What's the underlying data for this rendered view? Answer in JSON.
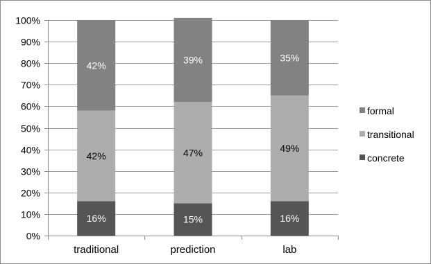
{
  "chart_data": {
    "type": "bar",
    "stacked": true,
    "categories": [
      "traditional",
      "prediction",
      "lab"
    ],
    "series": [
      {
        "name": "concrete",
        "values": [
          16,
          15,
          16
        ],
        "labels": [
          "16%",
          "15%",
          "16%"
        ],
        "color": "#555555",
        "label_color": "#ffffff"
      },
      {
        "name": "transitional",
        "values": [
          42,
          47,
          49
        ],
        "labels": [
          "42%",
          "47%",
          "49%"
        ],
        "color": "#adadad",
        "label_color": "#000000"
      },
      {
        "name": "formal",
        "values": [
          42,
          39,
          35
        ],
        "labels": [
          "42%",
          "39%",
          "35%"
        ],
        "color": "#828282",
        "label_color": "#ffffff"
      }
    ],
    "ylim": [
      0,
      100
    ],
    "yticks": [
      "0%",
      "10%",
      "20%",
      "30%",
      "40%",
      "50%",
      "60%",
      "70%",
      "80%",
      "90%",
      "100%"
    ],
    "grid": true,
    "legend": {
      "placement": "right",
      "order": [
        "formal",
        "transitional",
        "concrete"
      ]
    },
    "gridline_color": "#9a9a9a",
    "axis_color": "#888888"
  }
}
